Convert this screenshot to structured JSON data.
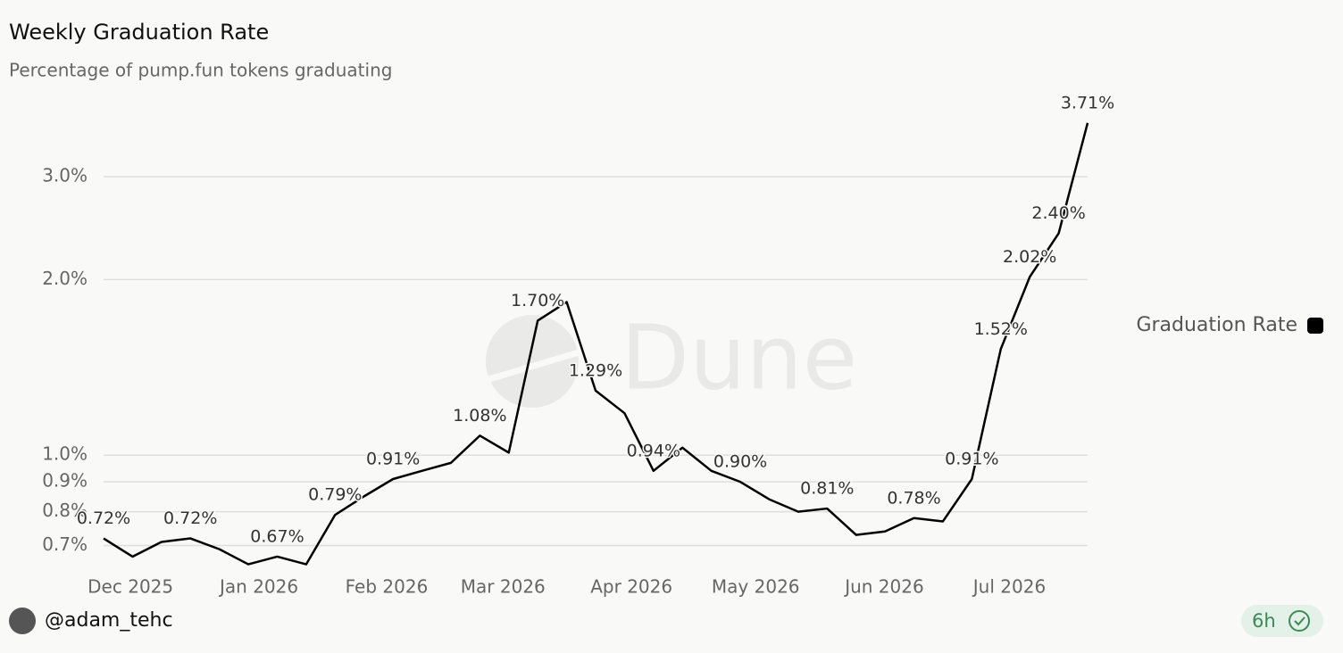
{
  "chart_data": {
    "type": "line",
    "title": "Weekly Graduation Rate",
    "subtitle": "Percentage of pump.fun tokens graduating",
    "categories": [
      null,
      null,
      null,
      null,
      null,
      null,
      null,
      null,
      null,
      null,
      null,
      null,
      null,
      null,
      null,
      null,
      null,
      null,
      null,
      null,
      null,
      null,
      null,
      null,
      null,
      null,
      null,
      null,
      null,
      null,
      null,
      null,
      null,
      null,
      null
    ],
    "xticks": [
      {
        "value": 0.93,
        "label": "Dec 2025"
      },
      {
        "value": 5.37,
        "label": "Jan 2026"
      },
      {
        "value": 9.78,
        "label": "Feb 2026"
      },
      {
        "value": 13.8,
        "label": "Mar 2026"
      },
      {
        "value": 18.24,
        "label": "Apr 2026"
      },
      {
        "value": 22.53,
        "label": "May 2026"
      },
      {
        "value": 26.98,
        "label": "Jun 2026"
      },
      {
        "value": 31.3,
        "label": "Jul 2026"
      }
    ],
    "series": [
      {
        "name": "Graduation Rate",
        "color": "#000000",
        "values": [
          0.72,
          0.67,
          0.71,
          0.72,
          0.69,
          0.65,
          0.67,
          0.65,
          0.79,
          0.85,
          0.91,
          0.94,
          0.97,
          1.08,
          1.01,
          1.7,
          1.83,
          1.29,
          1.18,
          0.94,
          1.03,
          0.94,
          0.9,
          0.84,
          0.8,
          0.81,
          0.73,
          0.74,
          0.78,
          0.77,
          0.91,
          1.52,
          2.02,
          2.4,
          3.71
        ],
        "value_labels": [
          "0.72%",
          null,
          null,
          "0.72%",
          null,
          null,
          "0.67%",
          null,
          "0.79%",
          null,
          "0.91%",
          null,
          null,
          "1.08%",
          null,
          "1.70%",
          null,
          "1.29%",
          null,
          "0.94%",
          null,
          null,
          "0.90%",
          null,
          null,
          "0.81%",
          null,
          null,
          "0.78%",
          null,
          "0.91%",
          "1.52%",
          "2.02%",
          "2.40%",
          "3.71%"
        ]
      }
    ],
    "ylim": [
      0.62,
      3.8
    ],
    "log_scale": true,
    "grid": true,
    "legend": "right",
    "yticks": [
      {
        "value": 0.7,
        "label": "0.7%"
      },
      {
        "value": 0.8,
        "label": "0.8%"
      },
      {
        "value": 0.9,
        "label": "0.9%"
      },
      {
        "value": 1.0,
        "label": "1.0%"
      },
      {
        "value": 2.0,
        "label": "2.0%"
      },
      {
        "value": 3.0,
        "label": "3.0%"
      }
    ],
    "watermark": "Dune"
  },
  "footer": {
    "author": "@adam_tehc",
    "age": "6h"
  }
}
